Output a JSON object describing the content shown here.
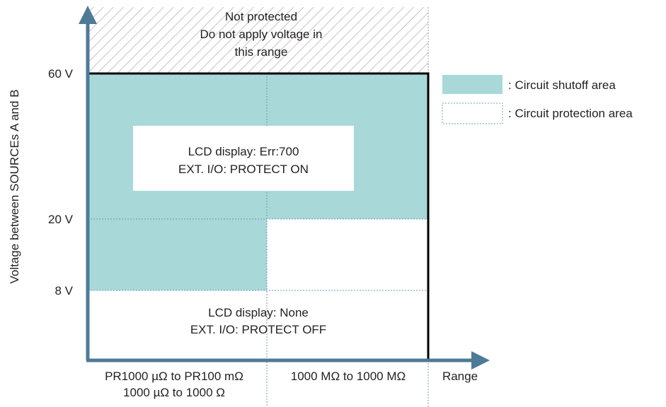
{
  "title": "",
  "y_axis": {
    "label": "Voltage between SOURCEs A and B",
    "ticks": [
      "60 V",
      "20 V",
      "8 V"
    ]
  },
  "x_axis": {
    "label": "Range",
    "categories": [
      {
        "line1": "PR1000 µΩ to PR100 mΩ",
        "line2": "1000 µΩ to 1000 Ω"
      },
      {
        "line1": "1000 MΩ to 1000 MΩ"
      }
    ]
  },
  "regions": {
    "not_protected": {
      "line1": "Not protected",
      "line2": "Do not apply voltage in",
      "line3": "this range"
    },
    "upper_box": {
      "line1": "LCD display: Err:700",
      "line2": "EXT. I/O: PROTECT ON"
    },
    "lower_box": {
      "line1": "LCD display: None",
      "line2": "EXT. I/O: PROTECT OFF"
    }
  },
  "legend": {
    "shutoff": ": Circuit shutoff area",
    "protection": ": Circuit protection area"
  },
  "colors": {
    "shutoff_fill": "#a8d8d8",
    "axis_arrow": "#4d7a96",
    "hatch": "#bdbdbd",
    "dotted_line": "#6e9cb8",
    "frame": "#000000",
    "text": "#231f20"
  }
}
